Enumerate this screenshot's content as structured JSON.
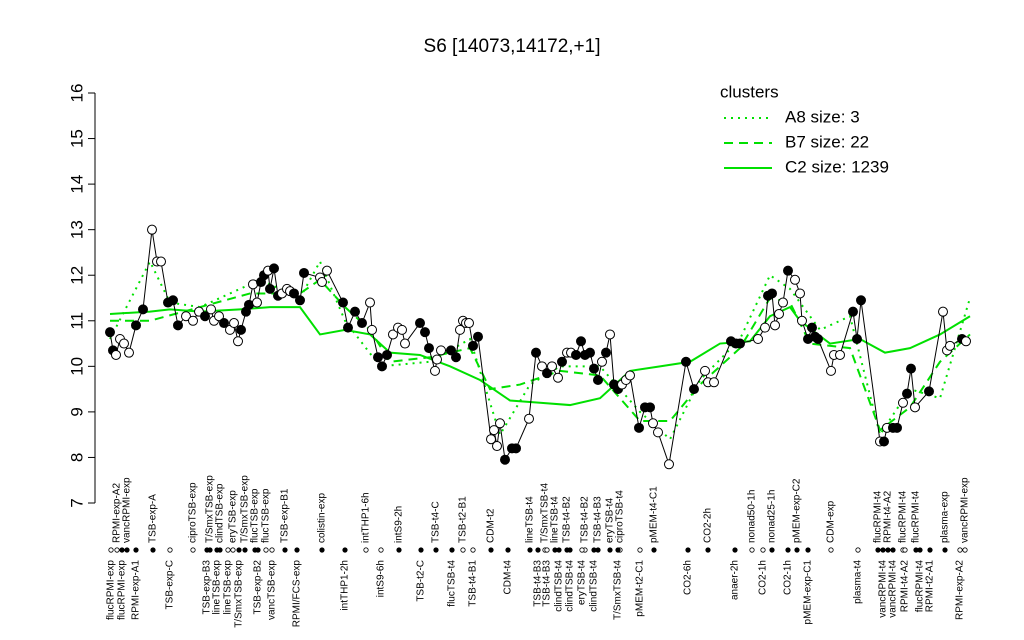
{
  "chart_data": {
    "type": "line",
    "title": "S6 [14073,14172,+1]",
    "ylim": [
      7,
      16
    ],
    "yticks": [
      7,
      8,
      9,
      10,
      11,
      12,
      13,
      14,
      15,
      16
    ],
    "xlim": [
      0,
      875
    ],
    "legend_title": "clusters",
    "legend_position": "top-right",
    "cluster_color": "#00e000",
    "samples": {
      "color": "#000000",
      "x": [
        10,
        13,
        16,
        20,
        24,
        29,
        36,
        43,
        52,
        57,
        61,
        68,
        73,
        78,
        86,
        93,
        99,
        105,
        111,
        114,
        119,
        124,
        130,
        134,
        138,
        141,
        146,
        149,
        153,
        157,
        161,
        164,
        168,
        170,
        174,
        178,
        182,
        187,
        190,
        194,
        200,
        204,
        220,
        222,
        227,
        243,
        248,
        255,
        262,
        270,
        272,
        278,
        282,
        287,
        293,
        298,
        302,
        305,
        320,
        325,
        329,
        335,
        337,
        341,
        351,
        356,
        360,
        363,
        366,
        369,
        373,
        378,
        391,
        394,
        397,
        400,
        405,
        412,
        416,
        429,
        436,
        442,
        447,
        452,
        458,
        462,
        467,
        471,
        476,
        481,
        485,
        490,
        494,
        498,
        502,
        506,
        510,
        514,
        518,
        522,
        526,
        530,
        539,
        545,
        550,
        553,
        558,
        569,
        586,
        594,
        605,
        608,
        614,
        631,
        636,
        640,
        658,
        665,
        668,
        672,
        675,
        679,
        683,
        688,
        695,
        700,
        702,
        708,
        712,
        715,
        718,
        731,
        734,
        740,
        753,
        757,
        761,
        780,
        784,
        787,
        793,
        797,
        803,
        807,
        811,
        815,
        829,
        843,
        847,
        850,
        862,
        866
      ],
      "values": [
        10.75,
        10.35,
        10.25,
        10.6,
        10.5,
        10.3,
        10.9,
        11.25,
        13.0,
        12.3,
        12.3,
        11.4,
        11.45,
        10.9,
        11.1,
        11.0,
        11.2,
        11.1,
        11.25,
        11.0,
        11.1,
        10.95,
        10.8,
        10.95,
        10.55,
        10.8,
        11.2,
        11.35,
        11.8,
        11.4,
        11.85,
        12.0,
        12.1,
        11.7,
        12.15,
        11.55,
        11.6,
        11.7,
        11.65,
        11.6,
        11.45,
        12.05,
        11.95,
        11.85,
        12.1,
        11.4,
        10.85,
        11.2,
        10.95,
        11.4,
        10.8,
        10.2,
        10.0,
        10.25,
        10.7,
        10.85,
        10.8,
        10.5,
        10.95,
        10.75,
        10.4,
        9.9,
        10.15,
        10.35,
        10.35,
        10.2,
        10.8,
        11.0,
        10.95,
        10.95,
        10.45,
        10.65,
        8.4,
        8.6,
        8.25,
        8.75,
        7.95,
        8.2,
        8.2,
        8.85,
        10.3,
        10.0,
        9.85,
        10.0,
        9.75,
        10.1,
        10.3,
        10.3,
        10.25,
        10.55,
        10.25,
        10.3,
        9.95,
        9.7,
        10.1,
        10.3,
        10.7,
        9.6,
        9.5,
        9.6,
        9.7,
        9.8,
        8.65,
        9.1,
        9.1,
        8.75,
        8.55,
        7.85,
        10.1,
        9.5,
        9.9,
        9.65,
        9.65,
        10.55,
        10.5,
        10.5,
        10.6,
        10.85,
        11.55,
        11.6,
        10.9,
        11.15,
        11.4,
        12.1,
        11.9,
        11.6,
        11.0,
        10.6,
        10.85,
        10.65,
        10.6,
        9.9,
        10.25,
        10.25,
        11.2,
        10.6,
        11.45,
        8.35,
        8.35,
        8.65,
        8.65,
        8.65,
        9.2,
        9.4,
        9.95,
        9.1,
        9.45,
        11.2,
        10.35,
        10.45,
        10.6,
        10.55
      ],
      "filled": [
        true,
        true,
        false,
        false,
        false,
        false,
        true,
        true,
        false,
        false,
        false,
        true,
        true,
        true,
        false,
        false,
        false,
        true,
        false,
        false,
        false,
        true,
        false,
        false,
        false,
        true,
        true,
        true,
        false,
        false,
        true,
        true,
        false,
        true,
        true,
        true,
        false,
        false,
        false,
        true,
        true,
        true,
        false,
        false,
        false,
        true,
        true,
        true,
        true,
        false,
        false,
        true,
        true,
        true,
        false,
        false,
        false,
        false,
        true,
        true,
        true,
        false,
        false,
        false,
        true,
        true,
        false,
        false,
        false,
        false,
        true,
        true,
        false,
        false,
        false,
        false,
        true,
        true,
        true,
        false,
        true,
        false,
        true,
        false,
        false,
        true,
        false,
        false,
        true,
        true,
        true,
        true,
        true,
        true,
        false,
        true,
        false,
        true,
        true,
        false,
        false,
        false,
        true,
        true,
        true,
        false,
        false,
        false,
        true,
        true,
        false,
        false,
        false,
        true,
        true,
        true,
        false,
        false,
        true,
        true,
        false,
        false,
        false,
        true,
        false,
        false,
        false,
        true,
        true,
        true,
        true,
        false,
        false,
        false,
        true,
        true,
        true,
        false,
        true,
        false,
        true,
        true,
        false,
        true,
        true,
        false,
        true,
        false,
        false,
        false,
        true,
        false
      ]
    },
    "series": [
      {
        "name": "A8 size: 3",
        "style": "dotted",
        "x": [
          10,
          50,
          70,
          100,
          160,
          200,
          220,
          245,
          280,
          330,
          370,
          400,
          430,
          460,
          500,
          540,
          570,
          600,
          640,
          670,
          690,
          720,
          750,
          780,
          810,
          840,
          870
        ],
        "values": [
          10.6,
          12.3,
          11.4,
          11.3,
          11.9,
          11.5,
          12.3,
          11.0,
          10.0,
          10.1,
          10.6,
          8.5,
          9.6,
          10.0,
          10.0,
          9.0,
          8.4,
          9.7,
          10.6,
          12.0,
          11.7,
          10.8,
          11.1,
          8.5,
          9.5,
          9.3,
          11.5
        ]
      },
      {
        "name": "B7 size: 22",
        "style": "dashed",
        "x": [
          10,
          50,
          100,
          150,
          200,
          220,
          245,
          270,
          290,
          330,
          370,
          390,
          420,
          460,
          500,
          540,
          570,
          600,
          640,
          670,
          690,
          710,
          750,
          780,
          810,
          840,
          870
        ],
        "values": [
          11.0,
          11.0,
          11.3,
          11.6,
          11.6,
          11.9,
          11.3,
          10.8,
          10.1,
          10.2,
          10.4,
          9.5,
          9.6,
          9.9,
          9.8,
          8.8,
          8.8,
          9.6,
          10.4,
          11.5,
          11.4,
          10.5,
          10.4,
          8.6,
          9.1,
          10.1,
          10.7
        ]
      },
      {
        "name": "C2 size: 1239",
        "style": "solid",
        "x": [
          10,
          50,
          70,
          100,
          140,
          170,
          200,
          220,
          245,
          270,
          290,
          320,
          350,
          380,
          410,
          440,
          470,
          500,
          530,
          560,
          590,
          620,
          650,
          670,
          690,
          700,
          730,
          760,
          785,
          810,
          840,
          870
        ],
        "values": [
          11.15,
          11.2,
          11.25,
          11.2,
          11.25,
          11.3,
          11.3,
          10.7,
          10.8,
          10.7,
          10.3,
          10.25,
          10.0,
          9.7,
          9.25,
          9.2,
          9.15,
          9.3,
          9.9,
          10.0,
          10.1,
          10.5,
          10.55,
          11.1,
          11.3,
          11.0,
          10.5,
          10.6,
          10.3,
          10.4,
          10.7,
          11.1
        ]
      }
    ],
    "xticks_top": [
      {
        "value": 17,
        "label": "RPMI-exp-A2"
      },
      {
        "value": 27,
        "label": "vancRPMI-exp"
      },
      {
        "value": 53,
        "label": "TSB-exp-A"
      },
      {
        "value": 93,
        "label": "ciproTSB-exp"
      },
      {
        "value": 110,
        "label": "T/SmxTSB-exp"
      },
      {
        "value": 120,
        "label": "clindTSB-exp"
      },
      {
        "value": 133,
        "label": "eryTSB-exp"
      },
      {
        "value": 145,
        "label": "T/SmxTSB-exp"
      },
      {
        "value": 155,
        "label": "flucTSB-exp"
      },
      {
        "value": 166,
        "label": "flucTSB-exp"
      },
      {
        "value": 185,
        "label": "TSB-exp-B1"
      },
      {
        "value": 222,
        "label": "colistin-exp"
      },
      {
        "value": 266,
        "label": "intTHP1-6h"
      },
      {
        "value": 299,
        "label": "intS9-2h"
      },
      {
        "value": 336,
        "label": "TSB-t4-C"
      },
      {
        "value": 363,
        "label": "TSB-t2-B1"
      },
      {
        "value": 391,
        "label": "CDM-t2"
      },
      {
        "value": 430,
        "label": "lineTSB-t4"
      },
      {
        "value": 445,
        "label": "T/SmxTSB-t4"
      },
      {
        "value": 455,
        "label": "lineTSB-t4"
      },
      {
        "value": 467,
        "label": "TSB-t4-B2"
      },
      {
        "value": 485,
        "label": "TSB-t4-B2"
      },
      {
        "value": 498,
        "label": "TSB-t4-B3"
      },
      {
        "value": 510,
        "label": "eryTSB-t4"
      },
      {
        "value": 520,
        "label": "ciproTSB-t4"
      },
      {
        "value": 554,
        "label": "pMEM-t4-C1"
      },
      {
        "value": 608,
        "label": "CO2-2h"
      },
      {
        "value": 652,
        "label": "nonad50-1h"
      },
      {
        "value": 672,
        "label": "nonad25-1h"
      },
      {
        "value": 697,
        "label": "pMEM-exp-C2"
      },
      {
        "value": 731,
        "label": "CDM-exp"
      },
      {
        "value": 778,
        "label": "flucRPMI-t4"
      },
      {
        "value": 788,
        "label": "RPMI-t4-A2"
      },
      {
        "value": 803,
        "label": "flucRPMI-t4"
      },
      {
        "value": 816,
        "label": "flucRPMI-t4"
      },
      {
        "value": 845,
        "label": "plasma-exp"
      },
      {
        "value": 865,
        "label": "vancRPMI-exp"
      }
    ],
    "xticks_bottom": [
      {
        "value": 11,
        "label": "flucRPMI-exp"
      },
      {
        "value": 22,
        "label": "flucRPMI-exp"
      },
      {
        "value": 36,
        "label": "RPMI-exp-A1"
      },
      {
        "value": 70,
        "label": "TSB-exp-C"
      },
      {
        "value": 107,
        "label": "TSB-exp-B3"
      },
      {
        "value": 117,
        "label": "lineTSB-exp"
      },
      {
        "value": 128,
        "label": "lineTSB-exp"
      },
      {
        "value": 139,
        "label": "T/SmxTSB-exp"
      },
      {
        "value": 158,
        "label": "TSB-exp-B2"
      },
      {
        "value": 172,
        "label": "vancTSB-exp"
      },
      {
        "value": 197,
        "label": "RPMI/FCS-exp"
      },
      {
        "value": 245,
        "label": "intTHP1-2h"
      },
      {
        "value": 281,
        "label": "intS9-6h"
      },
      {
        "value": 321,
        "label": "TSB-t2-C"
      },
      {
        "value": 352,
        "label": "flucTSB-t4"
      },
      {
        "value": 373,
        "label": "TSB-t4-B1"
      },
      {
        "value": 408,
        "label": "CDM-t4"
      },
      {
        "value": 438,
        "label": "TSB-t4-B3"
      },
      {
        "value": 447,
        "label": "TSB-t4-B3"
      },
      {
        "value": 459,
        "label": "clindTSB-t4"
      },
      {
        "value": 470,
        "label": "clindTSB-t4"
      },
      {
        "value": 482,
        "label": "eryTSB-t4"
      },
      {
        "value": 494,
        "label": "clindTSB-t4"
      },
      {
        "value": 518,
        "label": "T/SmxTSB-t4"
      },
      {
        "value": 540,
        "label": "pMEM-t2-C1"
      },
      {
        "value": 588,
        "label": "CO2-6h"
      },
      {
        "value": 635,
        "label": "anaer-2h"
      },
      {
        "value": 663,
        "label": "CO2-1h"
      },
      {
        "value": 688,
        "label": "CO2-1h"
      },
      {
        "value": 708,
        "label": "pMEM-exp-C1"
      },
      {
        "value": 758,
        "label": "plasma-t4"
      },
      {
        "value": 783,
        "label": "vancRPMI-t4"
      },
      {
        "value": 793,
        "label": "vancRPMI-t4"
      },
      {
        "value": 805,
        "label": "RPMI-t4-A2"
      },
      {
        "value": 820,
        "label": "flucRPMI-t4"
      },
      {
        "value": 830,
        "label": "RPMI-t2-A1"
      },
      {
        "value": 860,
        "label": "RPMI-exp-A2"
      }
    ]
  }
}
